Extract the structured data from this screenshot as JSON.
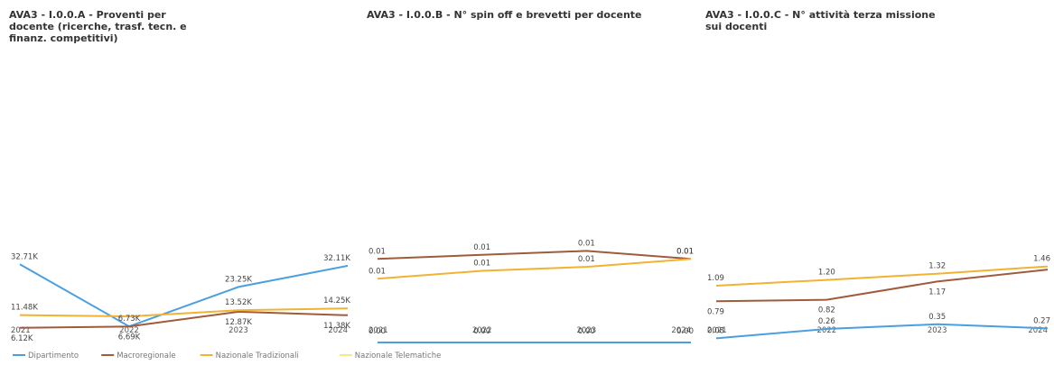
{
  "chart_data": [
    {
      "type": "line",
      "title": "AVA3 - I.0.0.A - Proventi per docente (ricerche, trasf. tecn. e finanz. competitivi)",
      "categories": [
        "2021",
        "2022",
        "2023",
        "2024"
      ],
      "ylim": [
        0,
        120
      ],
      "series": [
        {
          "name": "Dipartimento",
          "values": [
            32.71,
            6.73,
            23.25,
            32.11
          ],
          "labels": [
            "32.71K",
            "6.73K",
            "23.25K",
            "32.11K"
          ],
          "show": [
            true,
            true,
            true,
            true
          ]
        },
        {
          "name": "Macroregionale",
          "values": [
            6.12,
            6.69,
            12.87,
            11.38
          ],
          "labels": [
            "6.12K",
            "6.69K",
            "12.87K",
            "11.38K"
          ],
          "show": [
            true,
            true,
            true,
            true
          ]
        },
        {
          "name": "Nazionale Tradizionali",
          "values": [
            11.48,
            10.9,
            13.52,
            14.25
          ],
          "labels": [
            "11.48K",
            "",
            "13.52K",
            "14.25K"
          ],
          "show": [
            true,
            false,
            true,
            true
          ]
        },
        {
          "name": "Nazionale Telematiche",
          "values": [
            null,
            null,
            null,
            null
          ],
          "labels": [
            "",
            "",
            "",
            ""
          ],
          "show": [
            false,
            false,
            false,
            false
          ]
        }
      ]
    },
    {
      "type": "line",
      "title": "AVA3 - I.0.0.B - N° spin off e brevetti per docente",
      "categories": [
        "2021",
        "2022",
        "2023",
        "2024"
      ],
      "ylim": [
        0,
        0.036
      ],
      "series": [
        {
          "name": "Dipartimento",
          "values": [
            0.0,
            0.0,
            0.0,
            0.0
          ],
          "labels": [
            "0.00",
            "0.00",
            "0.00",
            "0.00"
          ],
          "show": [
            true,
            true,
            true,
            true
          ]
        },
        {
          "name": "Macroregionale",
          "values": [
            0.0105,
            0.011,
            0.0115,
            0.0105
          ],
          "labels": [
            "0.01",
            "0.01",
            "0.01",
            "0.01"
          ],
          "show": [
            true,
            true,
            true,
            true
          ]
        },
        {
          "name": "Nazionale Tradizionali",
          "values": [
            0.008,
            0.009,
            0.0095,
            0.0105
          ],
          "labels": [
            "0.01",
            "0.01",
            "0.01",
            "0.01"
          ],
          "show": [
            true,
            true,
            true,
            true
          ]
        },
        {
          "name": "Nazionale Telematiche",
          "values": [
            null,
            null,
            null,
            null
          ],
          "labels": [
            "",
            "",
            "",
            ""
          ],
          "show": [
            false,
            false,
            false,
            false
          ]
        }
      ]
    },
    {
      "type": "line",
      "title": "AVA3 - I.0.0.C - N° attività terza missione sui docenti",
      "categories": [
        "2021",
        "2022",
        "2023",
        "2024"
      ],
      "ylim": [
        0,
        5.5
      ],
      "series": [
        {
          "name": "Dipartimento",
          "values": [
            0.08,
            0.26,
            0.35,
            0.27
          ],
          "labels": [
            "0.08",
            "0.26",
            "0.35",
            "0.27"
          ],
          "show": [
            true,
            true,
            true,
            true
          ]
        },
        {
          "name": "Macroregionale",
          "values": [
            0.79,
            0.82,
            1.17,
            1.4
          ],
          "labels": [
            "0.79",
            "0.82",
            "1.17",
            ""
          ],
          "show": [
            true,
            true,
            true,
            false
          ]
        },
        {
          "name": "Nazionale Tradizionali",
          "values": [
            1.09,
            1.2,
            1.32,
            1.46
          ],
          "labels": [
            "1.09",
            "1.20",
            "1.32",
            "1.46"
          ],
          "show": [
            true,
            true,
            true,
            true
          ]
        },
        {
          "name": "Nazionale Telematiche",
          "values": [
            null,
            null,
            null,
            null
          ],
          "labels": [
            "",
            "",
            "",
            ""
          ],
          "show": [
            false,
            false,
            false,
            false
          ]
        }
      ]
    }
  ],
  "legend": [
    {
      "name": "Dipartimento",
      "color": "#4a9fe0"
    },
    {
      "name": "Macroregionale",
      "color": "#a05a3c"
    },
    {
      "name": "Nazionale Tradizionali",
      "color": "#f2b233"
    },
    {
      "name": "Nazionale Telematiche",
      "color": "#f3e88a"
    }
  ]
}
